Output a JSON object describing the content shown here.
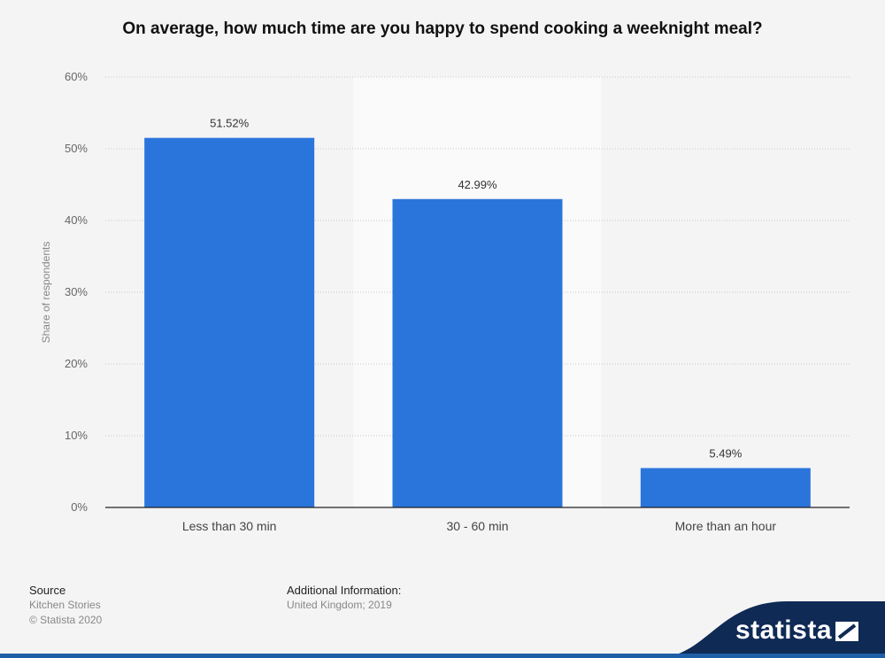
{
  "title": "On average, how much time are you happy to spend cooking a weeknight meal?",
  "chart_data": {
    "type": "bar",
    "categories": [
      "Less than 30 min",
      "30 - 60 min",
      "More than an hour"
    ],
    "values": [
      51.52,
      42.99,
      5.49
    ],
    "value_labels": [
      "51.52%",
      "42.99%",
      "5.49%"
    ],
    "ylabel": "Share of respondents",
    "ylim": [
      0,
      60
    ],
    "yticks": [
      "0%",
      "10%",
      "20%",
      "30%",
      "40%",
      "50%",
      "60%"
    ],
    "grid": true,
    "bar_color": "#2a75dc",
    "highlight_band_color": "#fafafa"
  },
  "footer": {
    "source_heading": "Source",
    "source_lines": [
      "Kitchen Stories",
      "© Statista 2020"
    ],
    "info_heading": "Additional Information:",
    "info_line": "United Kingdom; 2019"
  },
  "brand": {
    "name": "statista",
    "color": "#1f5fa8"
  }
}
